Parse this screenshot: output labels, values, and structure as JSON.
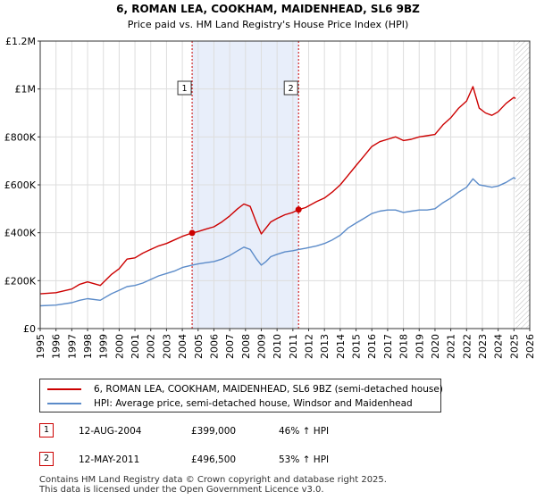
{
  "chart_data": {
    "type": "line",
    "title": "6, ROMAN LEA, COOKHAM, MAIDENHEAD, SL6 9BZ",
    "subtitle": "Price paid vs. HM Land Registry's House Price Index (HPI)",
    "xlim": [
      1995,
      2026
    ],
    "ylim": [
      0,
      1200000
    ],
    "x_ticks": [
      "1995",
      "1996",
      "1997",
      "1998",
      "1999",
      "2000",
      "2001",
      "2002",
      "2003",
      "2004",
      "2005",
      "2006",
      "2007",
      "2008",
      "2009",
      "2010",
      "2011",
      "2012",
      "2013",
      "2014",
      "2015",
      "2016",
      "2017",
      "2018",
      "2019",
      "2020",
      "2021",
      "2022",
      "2023",
      "2024",
      "2025",
      "2026"
    ],
    "y_ticks": [
      {
        "value": 0,
        "label": "£0"
      },
      {
        "value": 200000,
        "label": "£200K"
      },
      {
        "value": 400000,
        "label": "£400K"
      },
      {
        "value": 600000,
        "label": "£600K"
      },
      {
        "value": 800000,
        "label": "£800K"
      },
      {
        "value": 1000000,
        "label": "£1M"
      },
      {
        "value": 1200000,
        "label": "£1.2M"
      }
    ],
    "grid": true,
    "shaded_range": [
      2004.62,
      2011.36
    ],
    "forecast_hatch_from": 2025.1,
    "series": [
      {
        "name": "6, ROMAN LEA, COOKHAM, MAIDENHEAD, SL6 9BZ (semi-detached house)",
        "color": "#cc0000",
        "x": [
          1995.0,
          1996.0,
          1997.0,
          1997.5,
          1998.0,
          1998.8,
          1999.5,
          2000.0,
          2000.5,
          2001.0,
          2001.5,
          2002.0,
          2002.5,
          2003.0,
          2003.5,
          2004.0,
          2004.62,
          2005.0,
          2005.5,
          2006.0,
          2006.5,
          2007.0,
          2007.5,
          2007.9,
          2008.3,
          2008.7,
          2009.0,
          2009.3,
          2009.6,
          2010.0,
          2010.5,
          2011.0,
          2011.36,
          2011.8,
          2012.5,
          2013.0,
          2013.5,
          2014.0,
          2014.5,
          2015.0,
          2015.5,
          2016.0,
          2016.5,
          2017.0,
          2017.5,
          2018.0,
          2018.5,
          2019.0,
          2019.5,
          2020.0,
          2020.5,
          2021.0,
          2021.5,
          2022.0,
          2022.4,
          2022.8,
          2023.2,
          2023.6,
          2024.0,
          2024.5,
          2025.0,
          2025.1
        ],
        "values": [
          145000,
          150000,
          165000,
          185000,
          195000,
          180000,
          225000,
          250000,
          290000,
          295000,
          315000,
          330000,
          345000,
          355000,
          370000,
          385000,
          399000,
          405000,
          415000,
          425000,
          445000,
          470000,
          500000,
          520000,
          510000,
          440000,
          395000,
          420000,
          445000,
          460000,
          475000,
          485000,
          496500,
          505000,
          530000,
          545000,
          570000,
          600000,
          640000,
          680000,
          720000,
          760000,
          780000,
          790000,
          800000,
          785000,
          790000,
          800000,
          805000,
          810000,
          850000,
          880000,
          920000,
          950000,
          1010000,
          920000,
          900000,
          890000,
          905000,
          940000,
          965000,
          960000
        ]
      },
      {
        "name": "HPI: Average price, semi-detached house, Windsor and Maidenhead",
        "color": "#5b8bc9",
        "x": [
          1995.0,
          1996.0,
          1997.0,
          1997.5,
          1998.0,
          1998.8,
          1999.5,
          2000.0,
          2000.5,
          2001.0,
          2001.5,
          2002.0,
          2002.5,
          2003.0,
          2003.5,
          2004.0,
          2004.62,
          2005.0,
          2005.5,
          2006.0,
          2006.5,
          2007.0,
          2007.5,
          2007.9,
          2008.3,
          2008.7,
          2009.0,
          2009.3,
          2009.6,
          2010.0,
          2010.5,
          2011.0,
          2011.36,
          2011.8,
          2012.5,
          2013.0,
          2013.5,
          2014.0,
          2014.5,
          2015.0,
          2015.5,
          2016.0,
          2016.5,
          2017.0,
          2017.5,
          2018.0,
          2018.5,
          2019.0,
          2019.5,
          2020.0,
          2020.5,
          2021.0,
          2021.5,
          2022.0,
          2022.4,
          2022.8,
          2023.2,
          2023.6,
          2024.0,
          2024.5,
          2025.0,
          2025.1
        ],
        "values": [
          95000,
          98000,
          108000,
          118000,
          125000,
          118000,
          145000,
          160000,
          175000,
          180000,
          190000,
          205000,
          220000,
          230000,
          240000,
          255000,
          265000,
          270000,
          275000,
          280000,
          290000,
          305000,
          325000,
          340000,
          330000,
          290000,
          265000,
          280000,
          300000,
          310000,
          320000,
          325000,
          330000,
          335000,
          345000,
          355000,
          370000,
          390000,
          420000,
          440000,
          460000,
          480000,
          490000,
          495000,
          495000,
          485000,
          490000,
          495000,
          495000,
          500000,
          525000,
          545000,
          570000,
          590000,
          625000,
          600000,
          595000,
          590000,
          595000,
          610000,
          630000,
          625000
        ]
      }
    ],
    "markers": [
      {
        "id": "1",
        "x": 2004.62,
        "y": 399000
      },
      {
        "id": "2",
        "x": 2011.36,
        "y": 496500
      }
    ]
  },
  "legend": {
    "property_label": "6, ROMAN LEA, COOKHAM, MAIDENHEAD, SL6 9BZ (semi-detached house)",
    "hpi_label": "HPI: Average price, semi-detached house, Windsor and Maidenhead",
    "property_color": "#cc0000",
    "hpi_color": "#5b8bc9"
  },
  "transactions": [
    {
      "id": "1",
      "date": "12-AUG-2004",
      "price": "£399,000",
      "hpi": "46% ↑ HPI"
    },
    {
      "id": "2",
      "date": "12-MAY-2011",
      "price": "£496,500",
      "hpi": "53% ↑ HPI"
    }
  ],
  "footer": {
    "line1": "Contains HM Land Registry data © Crown copyright and database right 2025.",
    "line2": "This data is licensed under the Open Government Licence v3.0."
  }
}
